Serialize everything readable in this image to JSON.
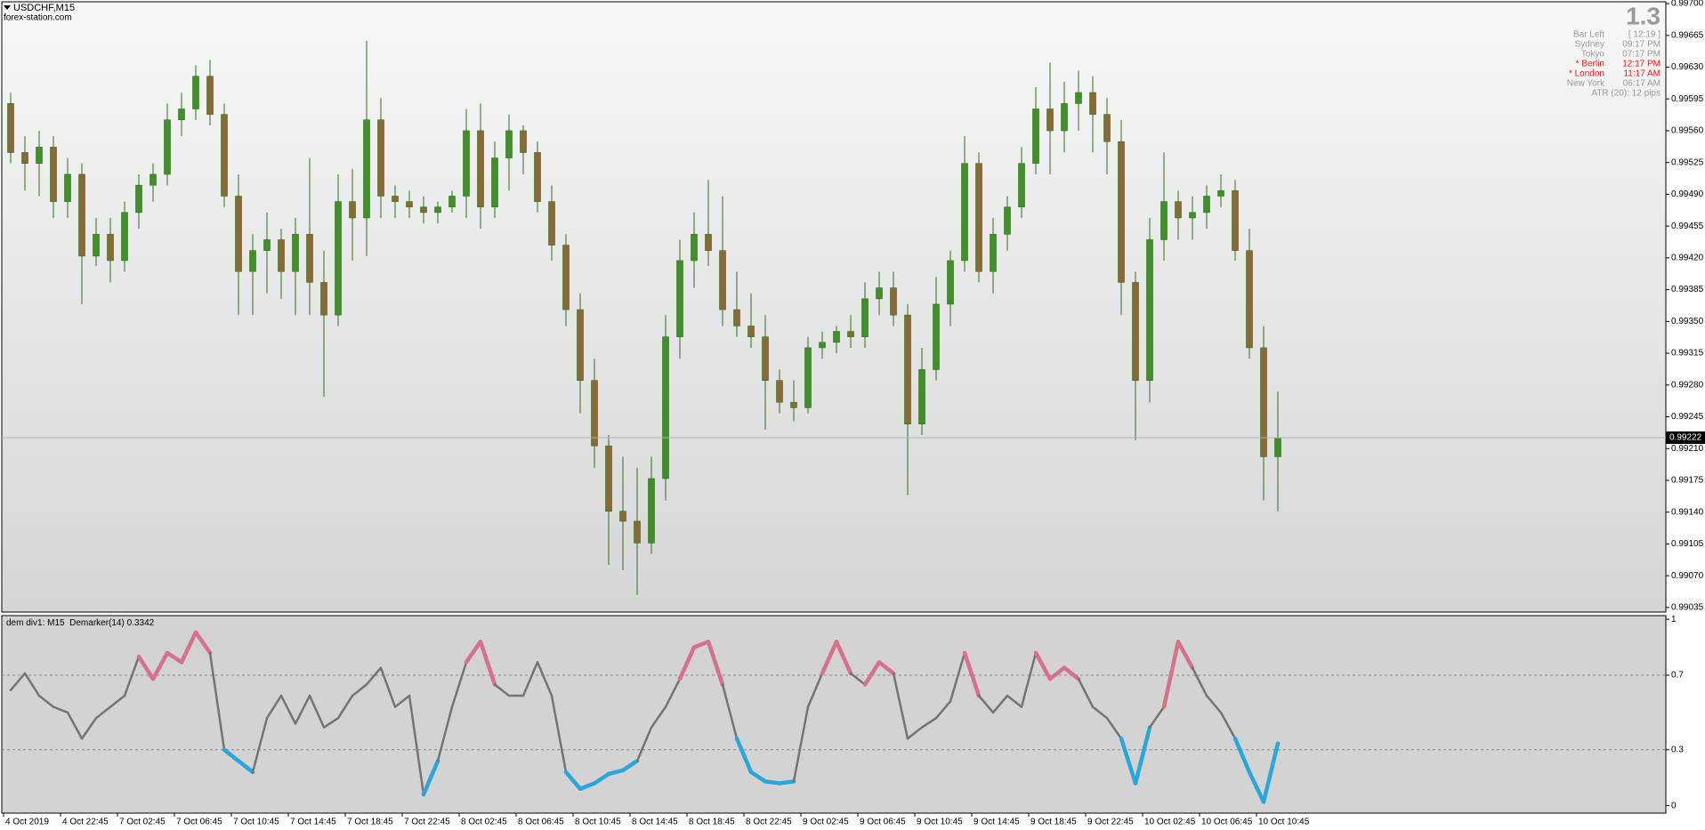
{
  "chart_data": {
    "type": "candlestick",
    "symbol": "USDCHF,M15",
    "watermark": "forex-station.com",
    "categories": [
      "4 Oct 2019",
      null,
      null,
      null,
      "4 Oct 22:45",
      null,
      null,
      null,
      "7 Oct 02:45",
      null,
      null,
      null,
      "7 Oct 06:45",
      null,
      null,
      null,
      "7 Oct 10:45",
      null,
      null,
      null,
      "7 Oct 14:45",
      null,
      null,
      null,
      "7 Oct 18:45",
      null,
      null,
      null,
      "7 Oct 22:45",
      null,
      null,
      null,
      "8 Oct 02:45",
      null,
      null,
      null,
      "8 Oct 06:45",
      null,
      null,
      null,
      "8 Oct 10:45",
      null,
      null,
      null,
      "8 Oct 14:45",
      null,
      null,
      null,
      "8 Oct 18:45",
      null,
      null,
      null,
      "8 Oct 22:45",
      null,
      null,
      null,
      "9 Oct 02:45",
      null,
      null,
      null,
      "9 Oct 06:45",
      null,
      null,
      null,
      "9 Oct 10:45",
      null,
      null,
      null,
      "9 Oct 14:45",
      null,
      null,
      null,
      "9 Oct 18:45",
      null,
      null,
      null,
      "9 Oct 22:45",
      null,
      null,
      null,
      "10 Oct 02:45",
      null,
      null,
      null,
      "10 Oct 06:45",
      null,
      null,
      null,
      "10 Oct 10:45",
      null
    ],
    "open": [
      0.9959,
      0.99536,
      0.99524,
      0.99542,
      0.99482,
      0.99512,
      0.99422,
      0.99446,
      0.99417,
      0.9947,
      0.995,
      0.99512,
      0.99572,
      0.99584,
      0.9962,
      0.99578,
      0.99488,
      0.99405,
      0.99428,
      0.9944,
      0.99405,
      0.99446,
      0.99393,
      0.99357,
      0.99482,
      0.99464,
      0.99572,
      0.99488,
      0.99482,
      0.99476,
      0.9947,
      0.99476,
      0.99488,
      0.9956,
      0.99476,
      0.9953,
      0.9956,
      0.99536,
      0.99482,
      0.99434,
      0.99363,
      0.99285,
      0.99213,
      0.99141,
      0.9913,
      0.99106,
      0.99177,
      0.99333,
      0.99417,
      0.99446,
      0.99428,
      0.99363,
      0.99345,
      0.99333,
      0.99285,
      0.99261,
      0.99255,
      0.99321,
      0.99327,
      0.99339,
      0.99333,
      0.99375,
      0.99387,
      0.99357,
      0.99237,
      0.99297,
      0.99369,
      0.99417,
      0.99524,
      0.99405,
      0.99446,
      0.99476,
      0.99524,
      0.99584,
      0.9956,
      0.9959,
      0.99602,
      0.99578,
      0.99548,
      0.99393,
      0.99285,
      0.9944,
      0.99482,
      0.99464,
      0.9947,
      0.99488,
      0.99494,
      0.99428,
      0.99321,
      0.99201
    ],
    "high": [
      0.99602,
      0.99554,
      0.9956,
      0.99554,
      0.9953,
      0.99524,
      0.99464,
      0.99464,
      0.99482,
      0.99512,
      0.99524,
      0.9959,
      0.99602,
      0.99632,
      0.99638,
      0.9959,
      0.99512,
      0.99446,
      0.9947,
      0.99452,
      0.99464,
      0.9953,
      0.99428,
      0.99512,
      0.99518,
      0.99659,
      0.99596,
      0.995,
      0.99494,
      0.99488,
      0.99482,
      0.99494,
      0.99584,
      0.9959,
      0.99548,
      0.99578,
      0.99566,
      0.99548,
      0.995,
      0.99446,
      0.99381,
      0.99309,
      0.99225,
      0.99201,
      0.99189,
      0.99201,
      0.99357,
      0.9944,
      0.9947,
      0.99506,
      0.99488,
      0.99405,
      0.99381,
      0.99357,
      0.99297,
      0.99285,
      0.99333,
      0.99339,
      0.99345,
      0.99357,
      0.99393,
      0.99405,
      0.99405,
      0.99369,
      0.99321,
      0.99399,
      0.99428,
      0.99554,
      0.99536,
      0.99464,
      0.99488,
      0.99542,
      0.99608,
      0.99635,
      0.99614,
      0.99626,
      0.9962,
      0.99596,
      0.99572,
      0.99405,
      0.99464,
      0.99536,
      0.99494,
      0.99488,
      0.995,
      0.99512,
      0.99506,
      0.99452,
      0.99345,
      0.99273
    ],
    "low": [
      0.99524,
      0.99494,
      0.99488,
      0.99464,
      0.99464,
      0.99369,
      0.99411,
      0.99393,
      0.99405,
      0.99452,
      0.99482,
      0.995,
      0.99554,
      0.99572,
      0.99566,
      0.99476,
      0.99357,
      0.99357,
      0.99381,
      0.99375,
      0.99357,
      0.99357,
      0.99267,
      0.99345,
      0.99417,
      0.99422,
      0.99464,
      0.99464,
      0.99464,
      0.99458,
      0.99458,
      0.9947,
      0.99464,
      0.99452,
      0.99464,
      0.99494,
      0.99512,
      0.9947,
      0.99417,
      0.99345,
      0.99249,
      0.99189,
      0.99082,
      0.99076,
      0.99049,
      0.99094,
      0.99153,
      0.99309,
      0.99387,
      0.99411,
      0.99345,
      0.99333,
      0.99321,
      0.99231,
      0.99249,
      0.9924,
      0.99249,
      0.99309,
      0.99315,
      0.99321,
      0.99321,
      0.99357,
      0.99345,
      0.99159,
      0.99225,
      0.99285,
      0.99345,
      0.99405,
      0.99393,
      0.99381,
      0.99428,
      0.99464,
      0.99512,
      0.99512,
      0.99536,
      0.9956,
      0.99536,
      0.99512,
      0.99357,
      0.99219,
      0.99261,
      0.99417,
      0.9944,
      0.9944,
      0.99452,
      0.99476,
      0.99417,
      0.99309,
      0.99153,
      0.99141
    ],
    "close": [
      0.99536,
      0.99524,
      0.99542,
      0.99482,
      0.99512,
      0.99422,
      0.99446,
      0.99417,
      0.9947,
      0.995,
      0.99512,
      0.99572,
      0.99584,
      0.9962,
      0.99578,
      0.99488,
      0.99405,
      0.99428,
      0.9944,
      0.99405,
      0.99446,
      0.99393,
      0.99357,
      0.99482,
      0.99464,
      0.99572,
      0.99488,
      0.99482,
      0.99476,
      0.9947,
      0.99476,
      0.99488,
      0.9956,
      0.99476,
      0.9953,
      0.9956,
      0.99536,
      0.99482,
      0.99434,
      0.99363,
      0.99285,
      0.99213,
      0.99141,
      0.9913,
      0.99106,
      0.99177,
      0.99333,
      0.99417,
      0.99446,
      0.99428,
      0.99363,
      0.99345,
      0.99333,
      0.99285,
      0.99261,
      0.99255,
      0.99321,
      0.99327,
      0.99339,
      0.99333,
      0.99375,
      0.99387,
      0.99357,
      0.99237,
      0.99297,
      0.99369,
      0.99417,
      0.99524,
      0.99405,
      0.99446,
      0.99476,
      0.99524,
      0.99584,
      0.9956,
      0.9959,
      0.99602,
      0.99578,
      0.99548,
      0.99393,
      0.99285,
      0.9944,
      0.99482,
      0.99464,
      0.9947,
      0.99488,
      0.99494,
      0.99428,
      0.99321,
      0.99201,
      0.99222
    ],
    "up_color": "#3f8f2a",
    "down_color": "#8a6a34",
    "ylim": [
      0.9903,
      0.99702
    ],
    "yticks": [
      0.99035,
      {
        "value": 0.9907,
        "label": "0.99070"
      },
      0.99105,
      {
        "value": 0.9914,
        "label": "0.99140"
      },
      0.99175,
      {
        "value": 0.9921,
        "label": "0.99210"
      },
      0.99245,
      {
        "value": 0.9928,
        "label": "0.99280"
      },
      0.99315,
      {
        "value": 0.9935,
        "label": "0.99350"
      },
      0.99385,
      {
        "value": 0.9942,
        "label": "0.99420"
      },
      0.99455,
      {
        "value": 0.9949,
        "label": "0.99490"
      },
      0.99525,
      {
        "value": 0.9956,
        "label": "0.99560"
      },
      0.99595,
      {
        "value": 0.9963,
        "label": "0.99630"
      },
      0.99665,
      {
        "value": 0.997,
        "label": "0.99700"
      }
    ],
    "indicator": {
      "type": "line",
      "title": "dem div1: M15  Demarker(14)",
      "values": [
        0.62,
        0.71,
        0.59,
        0.53,
        0.5,
        0.36,
        0.47,
        0.53,
        0.59,
        0.8,
        0.68,
        0.82,
        0.77,
        0.93,
        0.82,
        0.3,
        0.24,
        0.18,
        0.47,
        0.59,
        0.44,
        0.59,
        0.42,
        0.47,
        0.59,
        0.65,
        0.74,
        0.53,
        0.59,
        0.06,
        0.24,
        0.53,
        0.77,
        0.88,
        0.65,
        0.59,
        0.59,
        0.77,
        0.59,
        0.18,
        0.09,
        0.12,
        0.17,
        0.19,
        0.24,
        0.42,
        0.53,
        0.68,
        0.85,
        0.88,
        0.65,
        0.36,
        0.18,
        0.13,
        0.12,
        0.13,
        0.53,
        0.71,
        0.88,
        0.71,
        0.65,
        0.77,
        0.71,
        0.36,
        0.42,
        0.47,
        0.56,
        0.82,
        0.59,
        0.5,
        0.59,
        0.53,
        0.82,
        0.68,
        0.74,
        0.68,
        0.53,
        0.47,
        0.36,
        0.12,
        0.42,
        0.53,
        0.88,
        0.74,
        0.59,
        0.5,
        0.36,
        0.18,
        0.02,
        0.3342
      ],
      "ylim": [
        -0.04,
        1.02
      ],
      "yticks": [
        0,
        0.3,
        0.7,
        1
      ],
      "colors": {
        "above": "#d5718c",
        "below": "#2aa6da",
        "between": "#747474"
      }
    },
    "info": {
      "spread": 1.3,
      "color": "#9a9a9a",
      "rows": [
        {
          "label": "Bar Left",
          "value": "[ 12:19 ]",
          "color": "#9a9a9a"
        },
        {
          "label": "Sydney",
          "value": "09:17 PM",
          "color": "#9a9a9a"
        },
        {
          "label": "Tokyo",
          "value": "07:17 PM",
          "color": "#9a9a9a"
        },
        {
          "label": "* Berlin",
          "value": "12:17 PM",
          "color": "#e01c1c"
        },
        {
          "label": "* London",
          "value": "11:17 AM",
          "color": "#e01c1c"
        },
        {
          "label": "New York",
          "value": "06:17 AM",
          "color": "#9a9a9a"
        }
      ],
      "atr": "ATR (20): 12 pips"
    }
  }
}
